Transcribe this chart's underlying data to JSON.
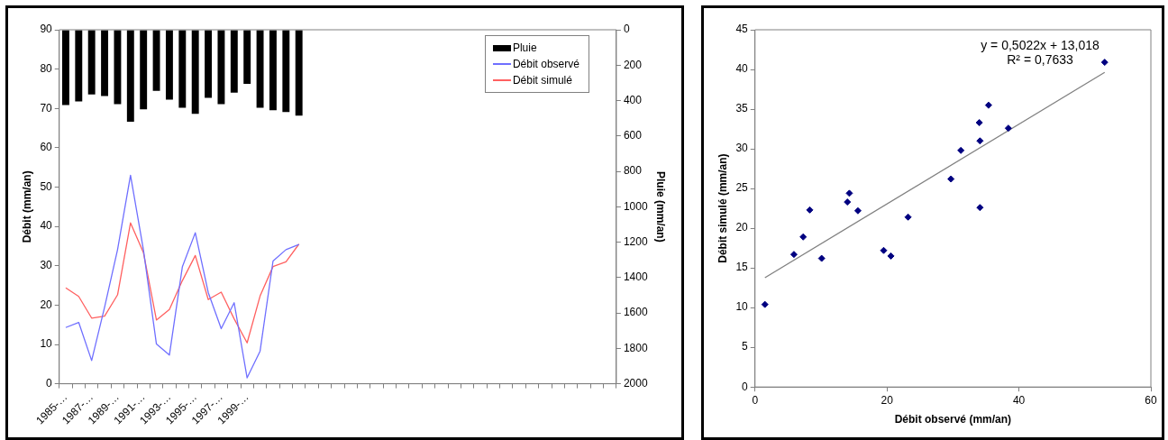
{
  "chart_data": [
    {
      "type": "bar",
      "categories": [
        "1985-…",
        null,
        "1987-…",
        null,
        "1989-…",
        null,
        "1991-…",
        null,
        "1993-…",
        null,
        "1995-…",
        null,
        "1997-…",
        null,
        "1999-…",
        null,
        null,
        null,
        null,
        null,
        null,
        null,
        null,
        null,
        null,
        null,
        null,
        null,
        null,
        null,
        null,
        null,
        null,
        null,
        null,
        null,
        null,
        null,
        null,
        null,
        null,
        null,
        null
      ],
      "ylabel": "Débit (mm/an)",
      "y2label": "Pluie (mm/an)",
      "ylim": [
        0,
        90
      ],
      "yticks": [
        0,
        10,
        20,
        30,
        40,
        50,
        60,
        70,
        80,
        90
      ],
      "y2lim": [
        2000,
        0
      ],
      "y2ticks": [
        0,
        200,
        400,
        600,
        800,
        1000,
        1200,
        1400,
        1600,
        1800,
        2000
      ],
      "grid": false,
      "legend": "top right",
      "series": [
        {
          "name": "Pluie",
          "type": "bar",
          "axis": "y2",
          "color": "#000000",
          "values": [
            425,
            405,
            365,
            375,
            420,
            520,
            450,
            345,
            395,
            440,
            475,
            385,
            420,
            355,
            305,
            440,
            455,
            465,
            485,
            null,
            null,
            null,
            null,
            null,
            null,
            null,
            null,
            null,
            null,
            null,
            null,
            null,
            null,
            null,
            null,
            null,
            null,
            null,
            null,
            null,
            null,
            null,
            null
          ]
        },
        {
          "name": "Débit observé",
          "type": "line",
          "marker": "none",
          "color": "#6f6fff",
          "values": [
            14.3,
            15.6,
            5.9,
            19.5,
            34.1,
            53.0,
            34.0,
            10.1,
            7.3,
            29.7,
            38.4,
            23.2,
            14.0,
            20.6,
            1.5,
            8.3,
            31.2,
            34.1,
            35.4,
            null,
            null,
            null,
            null,
            null,
            null,
            null,
            null,
            null,
            null,
            null,
            null,
            null,
            null,
            null,
            null,
            null,
            null,
            null,
            null,
            null,
            null,
            null,
            null
          ]
        },
        {
          "name": "Débit simulé",
          "type": "line",
          "marker": "none",
          "color": "#ff6060",
          "values": [
            24.4,
            22.2,
            16.7,
            17.2,
            22.6,
            40.9,
            33.3,
            16.2,
            18.9,
            26.2,
            32.6,
            21.4,
            23.3,
            16.5,
            10.4,
            22.3,
            29.8,
            31.0,
            35.5,
            null,
            null,
            null,
            null,
            null,
            null,
            null,
            null,
            null,
            null,
            null,
            null,
            null,
            null,
            null,
            null,
            null,
            null,
            null,
            null,
            null,
            null,
            null,
            null
          ]
        }
      ]
    },
    {
      "type": "scatter",
      "xlabel": "Débit observé (mm/an)",
      "ylabel": "Débit simulé (mm/an)",
      "xlim": [
        0,
        60
      ],
      "xticks": [
        0,
        20,
        40,
        60
      ],
      "ylim": [
        0,
        45
      ],
      "yticks": [
        0,
        5,
        10,
        15,
        20,
        25,
        30,
        35,
        40,
        45
      ],
      "grid": false,
      "annotations": [
        "y = 0,5022x + 13,018",
        "R² = 0,7633"
      ],
      "series": [
        {
          "type": "scatter",
          "marker": "diamond",
          "color": "#000080",
          "x": [
            14.3,
            15.6,
            5.9,
            19.5,
            34.1,
            53.0,
            34.0,
            10.1,
            7.3,
            29.7,
            38.4,
            23.2,
            14.0,
            20.6,
            1.5,
            8.3,
            31.2,
            34.1,
            35.4
          ],
          "values": [
            24.4,
            22.2,
            16.7,
            17.2,
            22.6,
            40.9,
            33.3,
            16.2,
            18.9,
            26.2,
            32.6,
            21.4,
            23.3,
            16.5,
            10.4,
            22.3,
            29.8,
            31.0,
            35.5
          ]
        },
        {
          "type": "line",
          "marker": "none",
          "color": "#808080",
          "x": [
            1.5,
            53
          ],
          "values": [
            13.77,
            39.63
          ]
        }
      ]
    }
  ]
}
